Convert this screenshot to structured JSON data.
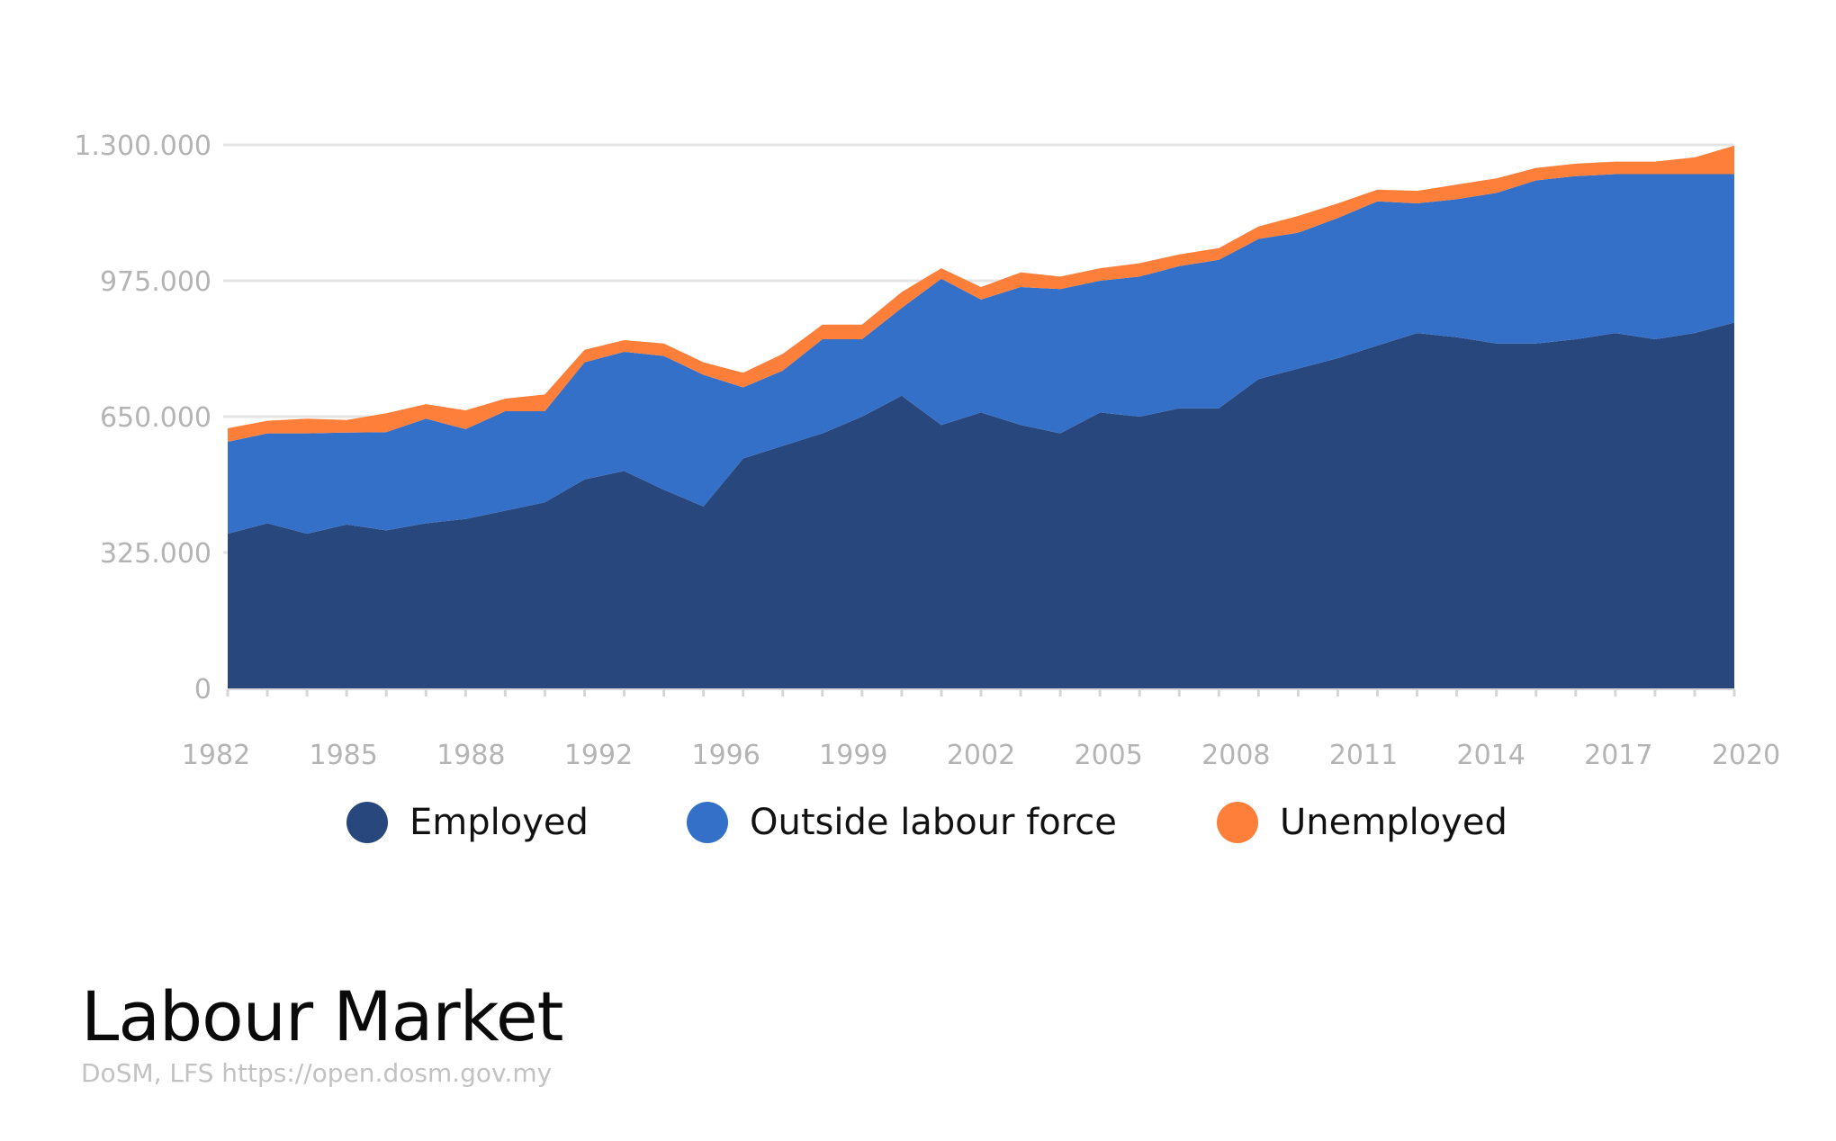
{
  "title": "Labour Market",
  "source": "DoSM, LFS https://open.dosm.gov.my",
  "chart_data": {
    "type": "area",
    "stacked": true,
    "x": [
      1982,
      1983,
      1984,
      1985,
      1986,
      1987,
      1988,
      1989,
      1990,
      1991,
      1992,
      1993,
      1994,
      1995,
      1996,
      1997,
      1998,
      1999,
      2000,
      2001,
      2002,
      2003,
      2004,
      2005,
      2006,
      2007,
      2008,
      2009,
      2010,
      2011,
      2012,
      2013,
      2014,
      2015,
      2016,
      2017,
      2018,
      2019,
      2020
    ],
    "x_tick_labels": [
      "1982",
      "1985",
      "1988",
      "1992",
      "1996",
      "1999",
      "2002",
      "2005",
      "2008",
      "2011",
      "2014",
      "2017",
      "2020"
    ],
    "y_ticks": [
      0,
      325000,
      650000,
      975000,
      1300000
    ],
    "y_tick_labels": [
      "0",
      "325.000",
      "650.000",
      "975.000",
      "1.300.000"
    ],
    "ylim": [
      0,
      1300000
    ],
    "grid": true,
    "legend_position": "bottom",
    "series": [
      {
        "name": "Employed",
        "color": "#28487d",
        "values": [
          370000,
          395000,
          370000,
          392000,
          378000,
          395000,
          405000,
          425000,
          445000,
          500000,
          520000,
          475000,
          435000,
          550000,
          580000,
          610000,
          650000,
          700000,
          630000,
          660000,
          630000,
          610000,
          660000,
          650000,
          670000,
          670000,
          740000,
          765000,
          790000,
          820000,
          850000,
          840000,
          825000,
          825000,
          835000,
          850000,
          835000,
          850000,
          875000
        ]
      },
      {
        "name": "Outside labour force",
        "color": "#3570c8",
        "values": [
          220000,
          215000,
          240000,
          220000,
          235000,
          250000,
          215000,
          238000,
          218000,
          280000,
          285000,
          320000,
          315000,
          170000,
          180000,
          225000,
          185000,
          210000,
          350000,
          270000,
          330000,
          345000,
          315000,
          335000,
          340000,
          355000,
          335000,
          325000,
          335000,
          345000,
          310000,
          330000,
          360000,
          390000,
          390000,
          380000,
          395000,
          380000,
          355000
        ]
      },
      {
        "name": "Unemployed",
        "color": "#fd7f39",
        "values": [
          32000,
          30000,
          35000,
          30000,
          45000,
          35000,
          45000,
          30000,
          40000,
          30000,
          28000,
          30000,
          30000,
          35000,
          40000,
          35000,
          35000,
          38000,
          25000,
          30000,
          35000,
          30000,
          30000,
          32000,
          28000,
          28000,
          30000,
          40000,
          35000,
          28000,
          30000,
          35000,
          35000,
          30000,
          30000,
          30000,
          30000,
          40000,
          68000
        ]
      }
    ]
  }
}
